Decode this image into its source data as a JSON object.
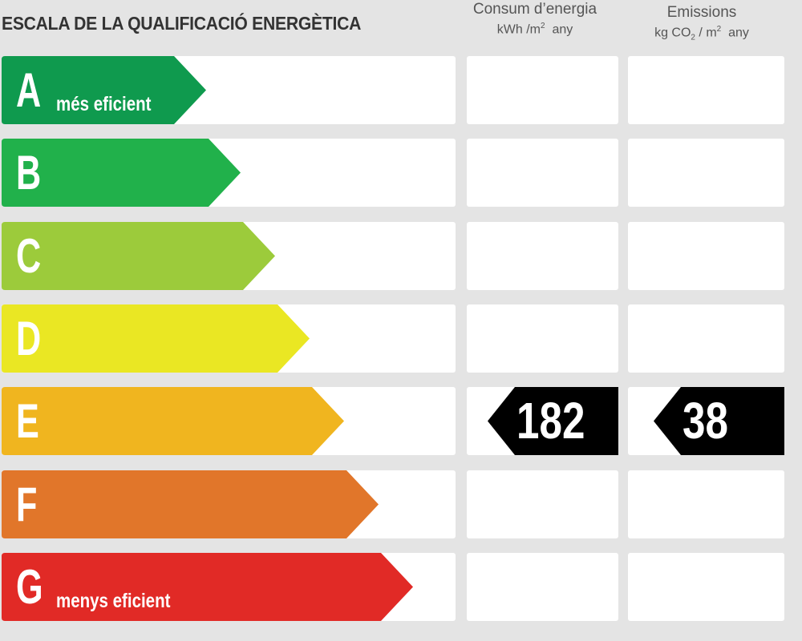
{
  "header": {
    "title": "ESCALA DE LA QUALIFICACIÓ ENERGÈTICA",
    "consumption": {
      "line1": "Consum d’energia",
      "unit_prefix": "kWh /m",
      "unit_sup": "2",
      "unit_suffix": "  any"
    },
    "emissions": {
      "line1": "Emissions",
      "unit_a": "kg CO",
      "unit_sub": "2",
      "unit_b": " / m",
      "unit_sup": "2",
      "unit_c": "  any"
    }
  },
  "ratings": [
    {
      "letter": "A",
      "sub": "més eficient",
      "color": "#0f9a4e"
    },
    {
      "letter": "B",
      "sub": "",
      "color": "#21b14b"
    },
    {
      "letter": "C",
      "sub": "",
      "color": "#9ccb3b"
    },
    {
      "letter": "D",
      "sub": "",
      "color": "#eae723"
    },
    {
      "letter": "E",
      "sub": "",
      "color": "#f0b51f"
    },
    {
      "letter": "F",
      "sub": "",
      "color": "#e1762a"
    },
    {
      "letter": "G",
      "sub": "menys eficient",
      "color": "#e12a26"
    }
  ],
  "result": {
    "rating": "E",
    "consumption_value": "182",
    "emissions_value": "38"
  }
}
